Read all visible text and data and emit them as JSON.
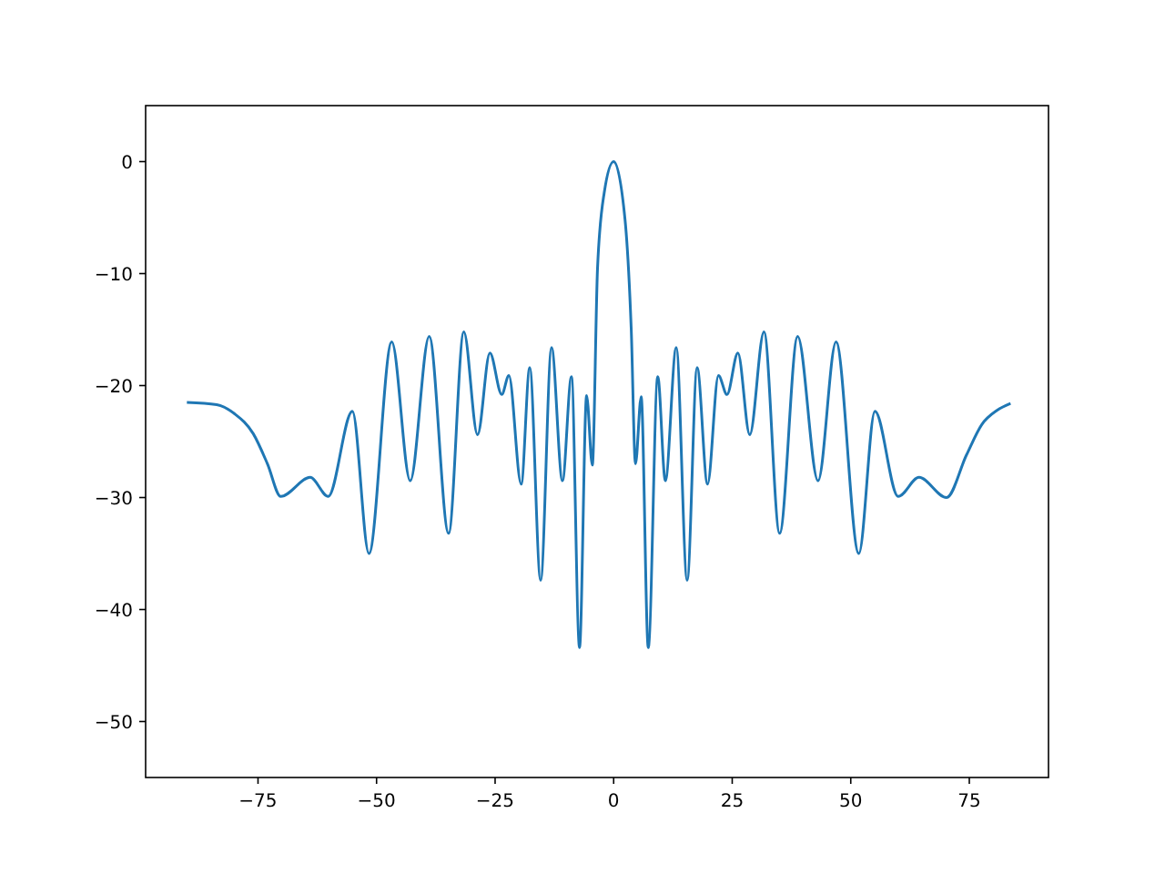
{
  "chart_data": {
    "type": "line",
    "xlim": [
      -98.7,
      91.7
    ],
    "ylim": [
      -55,
      5
    ],
    "xticks": [
      {
        "value": -75,
        "label": "−75"
      },
      {
        "value": -50,
        "label": "−50"
      },
      {
        "value": -25,
        "label": "−25"
      },
      0,
      25,
      50,
      75
    ],
    "yticks": [
      0,
      {
        "value": -10,
        "label": "−10"
      },
      {
        "value": -20,
        "label": "−20"
      },
      {
        "value": -30,
        "label": "−30"
      },
      {
        "value": -40,
        "label": "−40"
      },
      {
        "value": -50,
        "label": "−50"
      }
    ],
    "grid": false,
    "marker": "none",
    "line_style": "solid",
    "series": [
      {
        "color": "#1f77b4",
        "x": [
          -90,
          -83.7,
          -80,
          -76,
          -73,
          -70.2,
          -64,
          -60.2,
          -55.1,
          -51.6,
          -46.8,
          -42.9,
          -38.9,
          -34.8,
          -31.6,
          -28.7,
          -26.1,
          -23.6,
          -22.1,
          -19.5,
          -17.7,
          -15.4,
          -13.1,
          -10.8,
          -8.9,
          -7.2,
          -5.7,
          -4.5,
          -3.4,
          -2,
          0,
          2.4,
          3.7,
          4.6,
          5.8,
          7.3,
          9.3,
          10.9,
          13.2,
          15.5,
          17.6,
          19.8,
          22.1,
          23.9,
          26.2,
          28.7,
          31.7,
          35,
          38.8,
          43.1,
          46.9,
          51.7,
          55.1,
          60,
          64.4,
          70.2,
          74.4,
          77.6,
          80.9,
          83.7
        ],
        "values": [
          -21.5,
          -21.7,
          -22.5,
          -24.3,
          -27,
          -29.9,
          -28.2,
          -29.9,
          -22.3,
          -35,
          -16.1,
          -28.5,
          -15.6,
          -33.2,
          -15.2,
          -24.4,
          -17.1,
          -20.8,
          -19.1,
          -28.8,
          -18.4,
          -37.4,
          -16.6,
          -28.5,
          -19.2,
          -43.4,
          -20.9,
          -27.1,
          -9.5,
          -2.8,
          0,
          -5.2,
          -14.9,
          -27,
          -21,
          -43.4,
          -19.2,
          -28.5,
          -16.6,
          -37.4,
          -18.4,
          -28.8,
          -19.1,
          -20.8,
          -17.1,
          -24.4,
          -15.2,
          -33.2,
          -15.6,
          -28.5,
          -16.1,
          -35,
          -22.3,
          -29.9,
          -28.2,
          -30,
          -26.2,
          -23.5,
          -22.2,
          -21.6
        ]
      }
    ]
  }
}
